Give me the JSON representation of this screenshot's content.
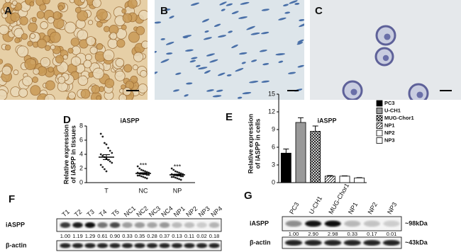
{
  "panel_labels": [
    "A",
    "B",
    "C",
    "D",
    "E",
    "F",
    "G"
  ],
  "chart_data": [
    {
      "type": "dot",
      "title": "iASPP",
      "y_label": [
        "Relative expression",
        "of iASPP in tissues"
      ],
      "categories": [
        "T",
        "NC",
        "NP"
      ],
      "points": [
        [
          6.9,
          6.5,
          5.6,
          5.4,
          4.9,
          4.5,
          4.2,
          4.0,
          3.8,
          3.6,
          3.4,
          3.2,
          3.0,
          2.8,
          2.5,
          2.2,
          1.9,
          1.6
        ],
        [
          2.3,
          2.0,
          1.8,
          1.7,
          1.6,
          1.5,
          1.4,
          1.4,
          1.3,
          1.3,
          1.2,
          1.2,
          1.1,
          1.1,
          1.0,
          1.0,
          0.9,
          0.8,
          0.7,
          0.6
        ],
        [
          2.0,
          1.8,
          1.6,
          1.5,
          1.4,
          1.3,
          1.2,
          1.2,
          1.1,
          1.1,
          1.0,
          1.0,
          0.9,
          0.9,
          0.8,
          0.8,
          0.7,
          0.6,
          0.5,
          0.4
        ]
      ],
      "means": [
        3.6,
        1.3,
        1.1
      ],
      "errors": [
        0.35,
        0.1,
        0.1
      ],
      "annotations": [
        null,
        "***",
        "***"
      ],
      "ylim": [
        0,
        8
      ],
      "yticks": [
        0,
        2,
        4,
        6,
        8
      ],
      "color": "#222"
    },
    {
      "type": "bar",
      "title": "iASPP",
      "y_label": [
        "Relative expression",
        "of iASPP in cells"
      ],
      "categories": [
        "PC3",
        "U-CH1",
        "MUG-Chor1",
        "NP1",
        "NP2",
        "NP3"
      ],
      "values": [
        5.0,
        10.2,
        8.7,
        1.1,
        1.1,
        0.8
      ],
      "errors": [
        0.7,
        0.8,
        0.9,
        0.1,
        0.05,
        0.05
      ],
      "fills": [
        "#000000",
        "#999999",
        "crosshatch",
        "stripes",
        "#ffffff",
        "#ffffff"
      ],
      "ylim": [
        0,
        15
      ],
      "yticks": [
        0,
        3,
        6,
        9,
        12,
        15
      ],
      "legend": "right"
    }
  ],
  "blot_f": {
    "lanes": [
      "T1",
      "T2",
      "T3",
      "T4",
      "T5",
      "NC1",
      "NC2",
      "NC3",
      "NC4",
      "NP1",
      "NP2",
      "NP3",
      "NP4"
    ],
    "rows": [
      "iASPP",
      "β-actin"
    ],
    "quantification": [
      "1.00",
      "1.19",
      "1.29",
      "0.61",
      "0.90",
      "0.33",
      "0.35",
      "0.28",
      "0.37",
      "0.13",
      "0.11",
      "0.02",
      "0.18"
    ]
  },
  "blot_g": {
    "lanes": [
      "PC3",
      "U-CH1",
      "MUG-Chor1",
      "NP1",
      "NP2",
      "NP3"
    ],
    "rows": [
      "iASPP",
      "β-actin"
    ],
    "quantification": [
      "1.00",
      "2.90",
      "2.98",
      "0.33",
      "0.17",
      "0.01"
    ],
    "markers": [
      "~98kDa",
      "~43kDa"
    ]
  }
}
